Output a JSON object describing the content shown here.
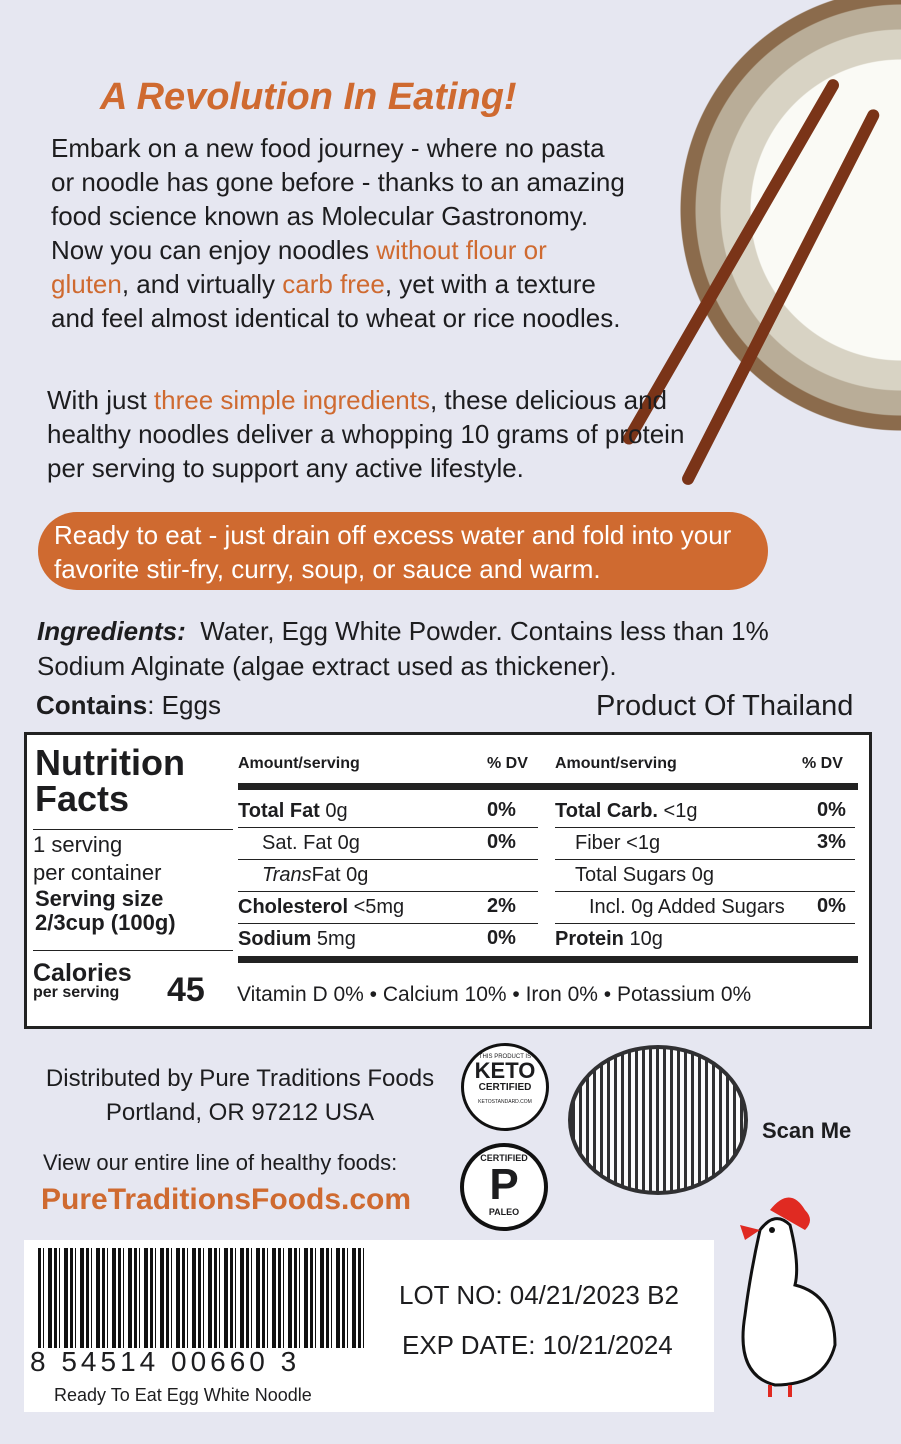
{
  "headline": "A Revolution In Eating!",
  "intro": {
    "t1": "Embark on a new food journey - where no pasta or noodle has gone before - thanks to an amazing food science known as Molecular Gastronomy. Now you can enjoy noodles ",
    "h1": "without flour or gluten",
    "t2": ", and virtually ",
    "h2": "carb free",
    "t3": ", yet with a texture and feel almost identical to wheat or rice noodles."
  },
  "second": {
    "t1": "With just ",
    "h1": "three simple ingredients",
    "t2": ", these delicious and healthy noodles deliver a whopping 10 grams of protein per serving to support any active lifestyle."
  },
  "callout": "Ready to eat - just drain off excess water and fold into your favorite stir-fry, curry, soup, or sauce and warm.",
  "ingredients": {
    "label": "Ingredients:",
    "text": "Water, Egg White Powder. Contains less than 1% Sodium Alginate (algae extract used as thickener)."
  },
  "contains": {
    "label": "Contains",
    "text": ": Eggs"
  },
  "origin": "Product Of Thailand",
  "nutrition": {
    "title1": "Nutrition",
    "title2": "Facts",
    "servings1": "1 serving",
    "servings2": "per container",
    "serving_size_label": "Serving size",
    "serving_size": "2/3cup (100g)",
    "calories_label": "Calories",
    "calories_sub": "per serving",
    "calories": "45",
    "header_amount": "Amount/serving",
    "header_dv": "% DV",
    "left": [
      {
        "name": "Total Fat",
        "amount": "0g",
        "dv": "0%",
        "bold": true
      },
      {
        "name": "Sat. Fat",
        "amount": "0g",
        "dv": "0%",
        "bold": false
      },
      {
        "name": "Trans",
        "name2": "Fat 0g",
        "amount": "",
        "dv": "",
        "bold": false
      },
      {
        "name": "Cholesterol",
        "amount": "<5mg",
        "dv": "2%",
        "bold": true
      },
      {
        "name": "Sodium",
        "amount": "5mg",
        "dv": "0%",
        "bold": true
      }
    ],
    "right": [
      {
        "name": "Total Carb.",
        "amount": "<1g",
        "dv": "0%",
        "bold": true
      },
      {
        "name": "Fiber",
        "amount": "<1g",
        "dv": "3%",
        "bold": false
      },
      {
        "name": "Total Sugars",
        "amount": "0g",
        "dv": "",
        "bold": false
      },
      {
        "name": "Incl. 0g Added Sugars",
        "amount": "",
        "dv": "0%",
        "bold": false
      },
      {
        "name": "Protein",
        "amount": "10g",
        "dv": "",
        "bold": true
      }
    ],
    "vitamins": "Vitamin D 0% • Calcium 10% • Iron 0% • Potassium 0%"
  },
  "distributor": {
    "line1": "Distributed by Pure Traditions Foods",
    "line2": "Portland, OR 97212 USA"
  },
  "view_line": "View our entire line of healthy foods:",
  "website": "PureTraditionsFoods.com",
  "keto": {
    "top": "THIS PRODUCT IS",
    "main": "KETO",
    "sub": "CERTIFIED",
    "bottom": "KETOSTANDARD.COM"
  },
  "paleo": {
    "top": "CERTIFIED",
    "main": "P",
    "bottom": "PALEO"
  },
  "scan": "Scan Me",
  "barcode": {
    "number": "8 54514 00660 3",
    "caption": "Ready To Eat Egg White Noodle"
  },
  "lot": "LOT NO: 04/21/2023 B2",
  "exp": "EXP DATE: 10/21/2024",
  "colors": {
    "accent": "#cf6a30",
    "background": "#e6e7f1"
  }
}
